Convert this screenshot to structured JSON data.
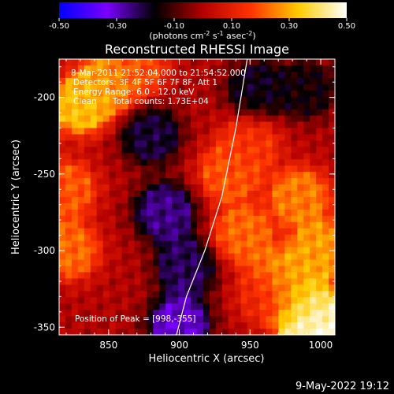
{
  "chart_data": {
    "type": "heatmap",
    "title": "Reconstructed RHESSI Image",
    "xlabel": "Heliocentric X (arcsec)",
    "ylabel": "Heliocentric Y (arcsec)",
    "xlim": [
      815,
      1010
    ],
    "ylim": [
      -355,
      -175
    ],
    "x_ticks": [
      850,
      900,
      950,
      1000
    ],
    "y_ticks": [
      -200,
      -250,
      -300,
      -350
    ],
    "colorbar": {
      "range": [
        -0.5,
        0.5
      ],
      "ticks": [
        "-0.50",
        "-0.30",
        "-0.10",
        "0.10",
        "0.30",
        "0.50"
      ],
      "unit_label": {
        "prefix": "(photons cm",
        "exp1": "-2",
        "mid1": " s",
        "exp2": "-1",
        "mid2": " asec",
        "exp3": "-2",
        "suffix": ")"
      },
      "colors": [
        "#0000ff",
        "#7a00ff",
        "#000000",
        "#b50000",
        "#ff3300",
        "#ffcc00",
        "#ffffff"
      ]
    },
    "info_lines": [
      "8-Mar-2011 21:52:04.000 to 21:54:52.000",
      "Detectors: 3F 4F 5F 6F 7F 8F, Att 1",
      "Energy Range: 6.0 - 12.0 keV",
      "Clean      Total counts: 1.73E+04"
    ],
    "peak_label": "Position of Peak = [998,-355]",
    "limb_curve": [
      [
        948,
        -175
      ],
      [
        940,
        -220
      ],
      [
        930,
        -265
      ],
      [
        918,
        -300
      ],
      [
        905,
        -330
      ],
      [
        898,
        -355
      ]
    ],
    "intensity_regions": [
      {
        "x": 830,
        "y": -205,
        "value": 0.32
      },
      {
        "x": 850,
        "y": -190,
        "value": 0.28
      },
      {
        "x": 870,
        "y": -180,
        "value": 0.18
      },
      {
        "x": 820,
        "y": -260,
        "value": 0.2
      },
      {
        "x": 822,
        "y": -300,
        "value": 0.22
      },
      {
        "x": 935,
        "y": -250,
        "value": 0.2
      },
      {
        "x": 950,
        "y": -230,
        "value": 0.15
      },
      {
        "x": 945,
        "y": -290,
        "value": 0.22
      },
      {
        "x": 985,
        "y": -265,
        "value": 0.24
      },
      {
        "x": 1000,
        "y": -300,
        "value": 0.28
      },
      {
        "x": 975,
        "y": -320,
        "value": 0.3
      },
      {
        "x": 990,
        "y": -340,
        "value": 0.4
      },
      {
        "x": 998,
        "y": -355,
        "value": 0.5
      },
      {
        "x": 880,
        "y": -225,
        "value": -0.2
      },
      {
        "x": 890,
        "y": -275,
        "value": -0.25
      },
      {
        "x": 905,
        "y": -310,
        "value": -0.22
      },
      {
        "x": 900,
        "y": -348,
        "value": -0.3
      },
      {
        "x": 955,
        "y": -195,
        "value": -0.18
      },
      {
        "x": 990,
        "y": -195,
        "value": -0.15
      },
      {
        "x": 960,
        "y": -330,
        "value": 0.1
      }
    ]
  },
  "footer": {
    "date_label": "9-May-2022 19:12"
  }
}
